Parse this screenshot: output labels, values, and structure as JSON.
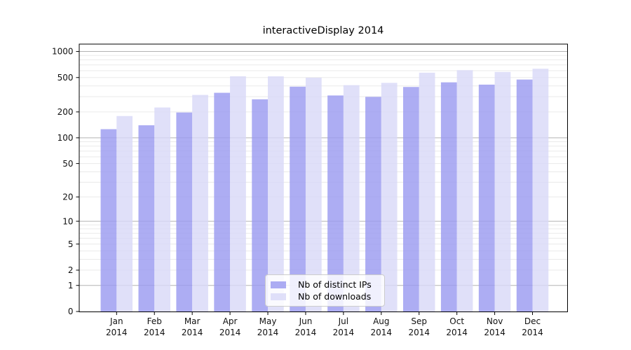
{
  "chart_data": {
    "type": "bar",
    "title": "interactiveDisplay 2014",
    "categories": [
      "Jan",
      "Feb",
      "Mar",
      "Apr",
      "May",
      "Jun",
      "Jul",
      "Aug",
      "Sep",
      "Oct",
      "Nov",
      "Dec"
    ],
    "x_year_label": "2014",
    "series": [
      {
        "name": "Nb of distinct IPs",
        "color": "#9898f0",
        "values": [
          126,
          140,
          197,
          333,
          280,
          392,
          310,
          299,
          389,
          440,
          414,
          474
        ]
      },
      {
        "name": "Nb of downloads",
        "color": "#d8d8f8",
        "values": [
          179,
          225,
          315,
          517,
          516,
          498,
          408,
          434,
          569,
          608,
          580,
          632
        ]
      }
    ],
    "yticks": [
      0,
      1,
      2,
      5,
      10,
      20,
      50,
      100,
      200,
      500,
      1000
    ],
    "yscale": "log10(value+1)",
    "ylim": [
      0,
      1200
    ],
    "grid": "major-and-minor-horizontal",
    "legend_position": "inside-bottom-center",
    "colors": {
      "grid_major": "#b3b3b3",
      "grid_minor": "#eaeaea",
      "spine": "#000000",
      "tick_label": "#111111"
    }
  }
}
